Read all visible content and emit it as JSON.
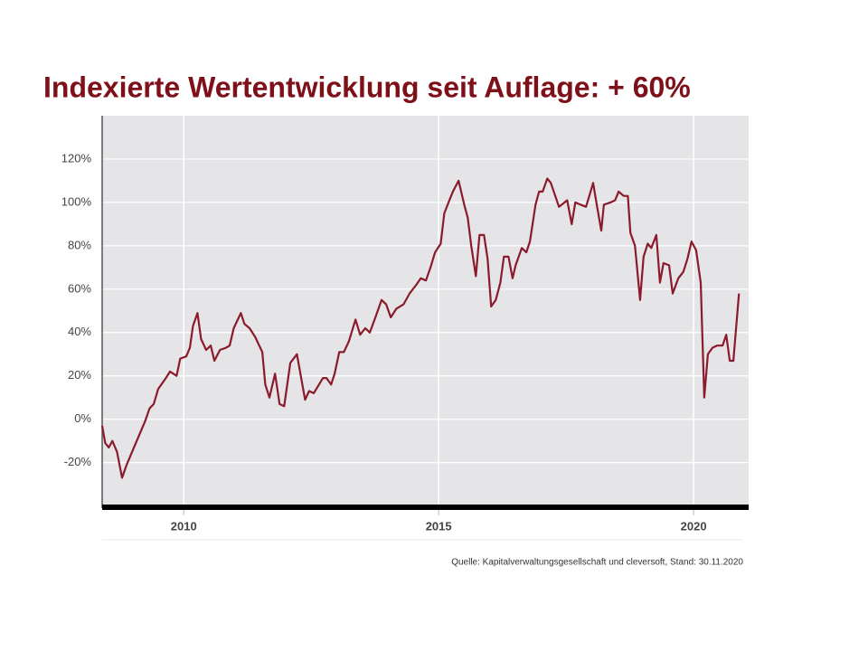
{
  "chart_data": {
    "type": "line",
    "title": "Indexierte Wertentwicklung seit Auflage: + 60%",
    "source": "Quelle: Kapitalverwaltungsgesellschaft und cleversoft, Stand: 30.11.2020",
    "x": [
      2008.4,
      2008.46,
      2008.53,
      2008.6,
      2008.69,
      2008.79,
      2008.88,
      2009.06,
      2009.24,
      2009.33,
      2009.41,
      2009.5,
      2009.65,
      2009.73,
      2009.86,
      2009.93,
      2010.05,
      2010.12,
      2010.18,
      2010.27,
      2010.34,
      2010.44,
      2010.53,
      2010.6,
      2010.71,
      2010.83,
      2010.9,
      2010.98,
      2011.12,
      2011.19,
      2011.29,
      2011.4,
      2011.54,
      2011.6,
      2011.68,
      2011.79,
      2011.88,
      2011.97,
      2012.09,
      2012.22,
      2012.38,
      2012.46,
      2012.55,
      2012.73,
      2012.8,
      2012.89,
      2012.96,
      2013.05,
      2013.14,
      2013.24,
      2013.37,
      2013.46,
      2013.56,
      2013.65,
      2013.76,
      2013.88,
      2013.97,
      2014.06,
      2014.17,
      2014.31,
      2014.43,
      2014.56,
      2014.65,
      2014.75,
      2014.84,
      2014.93,
      2015.04,
      2015.11,
      2015.21,
      2015.28,
      2015.39,
      2015.5,
      2015.57,
      2015.64,
      2015.73,
      2015.8,
      2015.89,
      2015.96,
      2016.03,
      2016.12,
      2016.21,
      2016.28,
      2016.37,
      2016.45,
      2016.51,
      2016.63,
      2016.72,
      2016.79,
      2016.9,
      2016.97,
      2017.04,
      2017.13,
      2017.2,
      2017.36,
      2017.52,
      2017.61,
      2017.68,
      2017.78,
      2017.89,
      2017.98,
      2018.03,
      2018.1,
      2018.19,
      2018.24,
      2018.37,
      2018.46,
      2018.53,
      2018.63,
      2018.71,
      2018.76,
      2018.85,
      2018.95,
      2019.02,
      2019.1,
      2019.17,
      2019.27,
      2019.34,
      2019.41,
      2019.52,
      2019.59,
      2019.7,
      2019.8,
      2019.88,
      2019.96,
      2020.05,
      2020.14,
      2020.21,
      2020.28,
      2020.37,
      2020.46,
      2020.57,
      2020.64,
      2020.71,
      2020.78,
      2020.89
    ],
    "series": [
      {
        "color": "#8b1a2b",
        "values": [
          -3,
          -11,
          -13,
          -10,
          -15,
          -27,
          -21,
          -11,
          -1,
          5,
          7,
          14,
          19,
          22,
          20,
          28,
          29,
          33,
          43,
          49,
          37,
          32,
          34,
          27,
          32,
          33,
          34,
          42,
          49,
          44,
          42,
          38,
          31,
          16,
          10,
          21,
          7,
          6,
          26,
          30,
          9,
          13,
          12,
          19,
          19,
          16,
          21,
          31,
          31,
          36,
          46,
          39,
          42,
          40,
          47,
          55,
          53,
          47,
          51,
          53,
          58,
          62,
          65,
          64,
          70,
          77,
          81,
          95,
          101,
          105,
          110,
          99,
          93,
          80,
          66,
          85,
          85,
          74,
          52,
          55,
          63,
          75,
          75,
          65,
          71,
          79,
          77,
          82,
          99,
          105,
          105,
          111,
          109,
          98,
          101,
          90,
          100,
          99,
          98,
          105,
          109,
          99,
          87,
          99,
          100,
          101,
          105,
          103,
          103,
          86,
          80,
          55,
          75,
          81,
          79,
          85,
          63,
          72,
          71,
          58,
          65,
          68,
          74,
          82,
          78,
          63,
          10,
          30,
          33,
          34,
          34,
          39,
          27,
          27,
          58
        ]
      }
    ],
    "xlim": [
      2008.4,
      2021.08
    ],
    "xticks": [
      2010,
      2015,
      2020
    ],
    "ylim": [
      -41,
      140
    ],
    "yticks": [
      {
        "value": -20,
        "label": "-20%"
      },
      {
        "value": 0,
        "label": "0%"
      },
      {
        "value": 20,
        "label": "20%"
      },
      {
        "value": 40,
        "label": "40%"
      },
      {
        "value": 60,
        "label": "60%"
      },
      {
        "value": 80,
        "label": "80%"
      },
      {
        "value": 100,
        "label": "100%"
      },
      {
        "value": 120,
        "label": "120%"
      }
    ],
    "grid": true
  }
}
